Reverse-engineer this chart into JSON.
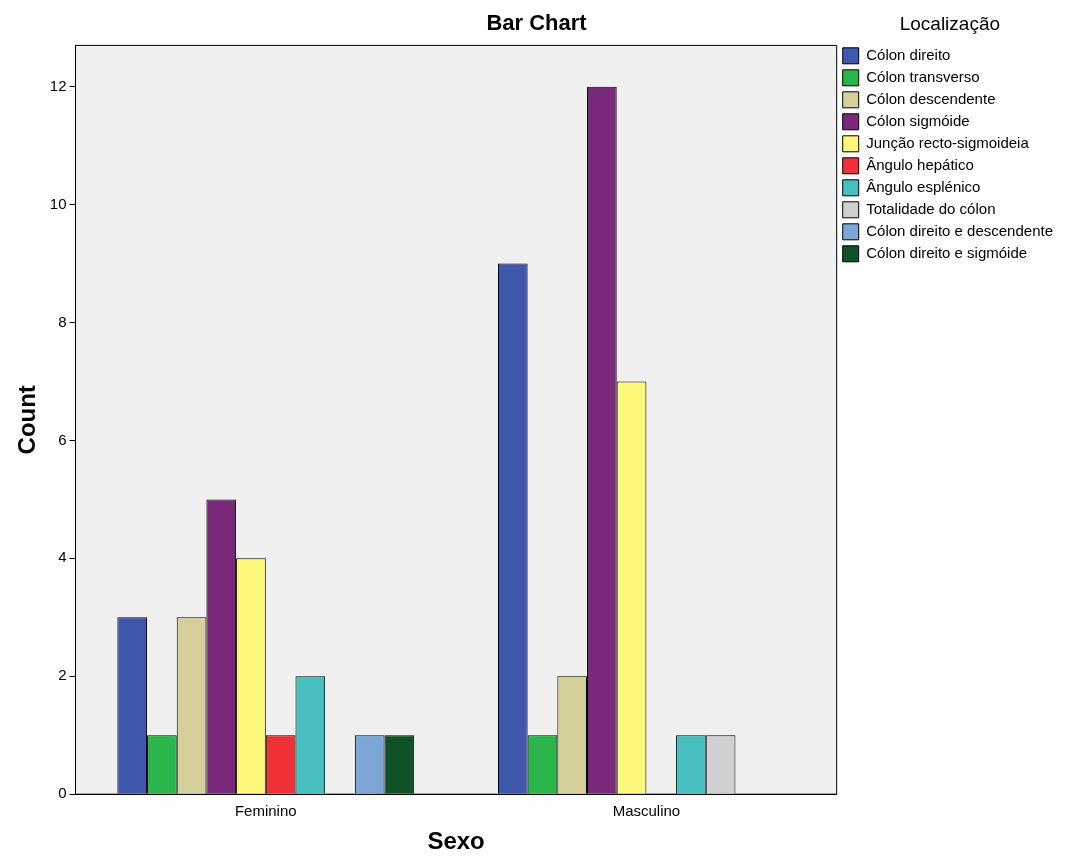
{
  "chart_data": {
    "type": "bar",
    "title": "Bar Chart",
    "xlabel": "Sexo",
    "ylabel": "Count",
    "legend_title": "Localização",
    "legend": "top right",
    "grid": false,
    "categories": [
      "Feminino",
      "Masculino"
    ],
    "ylim": [
      0,
      12.7
    ],
    "yticks": [
      0,
      2,
      4,
      6,
      8,
      10,
      12
    ],
    "series": [
      {
        "name": "Cólon direito",
        "color": "#3e58ac",
        "values": [
          3,
          9
        ]
      },
      {
        "name": "Cólon transverso",
        "color": "#2ab64a",
        "values": [
          1,
          1
        ]
      },
      {
        "name": "Cólon descendente",
        "color": "#d5d09a",
        "values": [
          3,
          2
        ]
      },
      {
        "name": "Cólon sigmóide",
        "color": "#7a2a7a",
        "values": [
          5,
          12
        ]
      },
      {
        "name": "Junção recto-sigmoideia",
        "color": "#fbf87a",
        "values": [
          4,
          7
        ]
      },
      {
        "name": "Ângulo hepático",
        "color": "#ee3238",
        "values": [
          1,
          null
        ]
      },
      {
        "name": "Ângulo esplénico",
        "color": "#47bfc0",
        "values": [
          2,
          1
        ]
      },
      {
        "name": "Totalidade do cólon",
        "color": "#d0d0d0",
        "values": [
          null,
          1
        ]
      },
      {
        "name": "Cólon direito e descendente",
        "color": "#7ba6d6",
        "values": [
          1,
          null
        ]
      },
      {
        "name": "Cólon direito e sigmóide",
        "color": "#0f5228",
        "values": [
          1,
          null
        ]
      }
    ]
  }
}
